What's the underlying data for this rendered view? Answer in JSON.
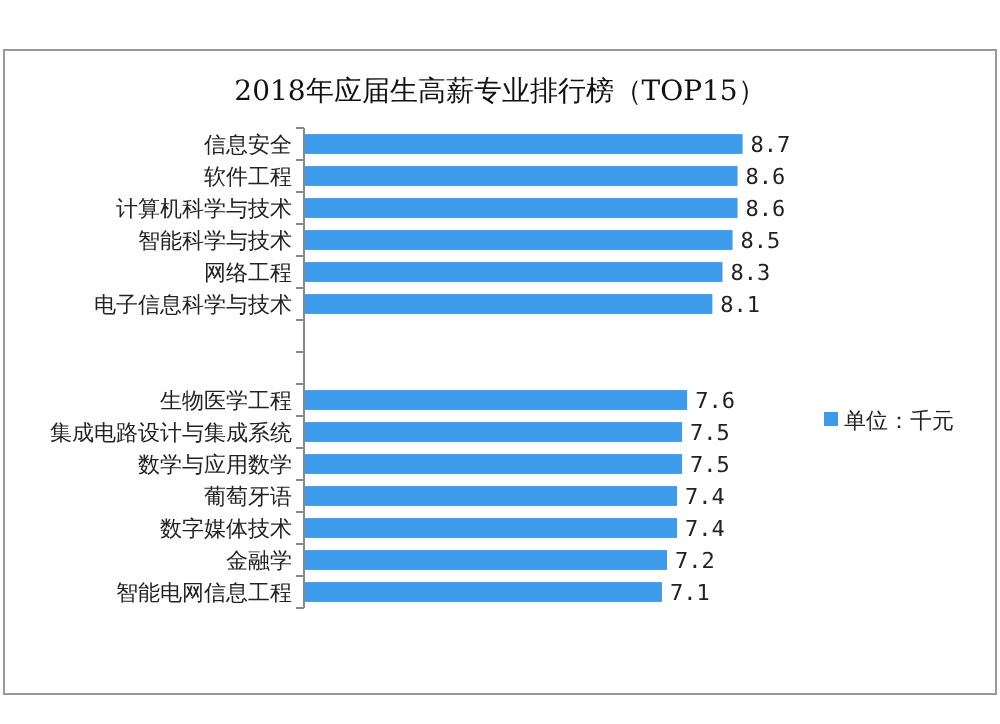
{
  "chart_data": {
    "type": "bar",
    "orientation": "horizontal",
    "title": "2018年应届生高薪专业排行榜（TOP15）",
    "categories": [
      "信息安全",
      "软件工程",
      "计算机科学与技术",
      "智能科学与技术",
      "网络工程",
      "电子信息科学与技术",
      null,
      null,
      "生物医学工程",
      "集成电路设计与集成系统",
      "数学与应用数学",
      "葡萄牙语",
      "数字媒体技术",
      "金融学",
      "智能电网信息工程"
    ],
    "series": [
      {
        "name": "单位：千元",
        "color": "#3d9be9",
        "values": [
          8.7,
          8.6,
          8.6,
          8.5,
          8.3,
          8.1,
          null,
          null,
          7.6,
          7.5,
          7.5,
          7.4,
          7.4,
          7.2,
          7.1
        ]
      }
    ],
    "data_labels": true,
    "legend": "right"
  }
}
